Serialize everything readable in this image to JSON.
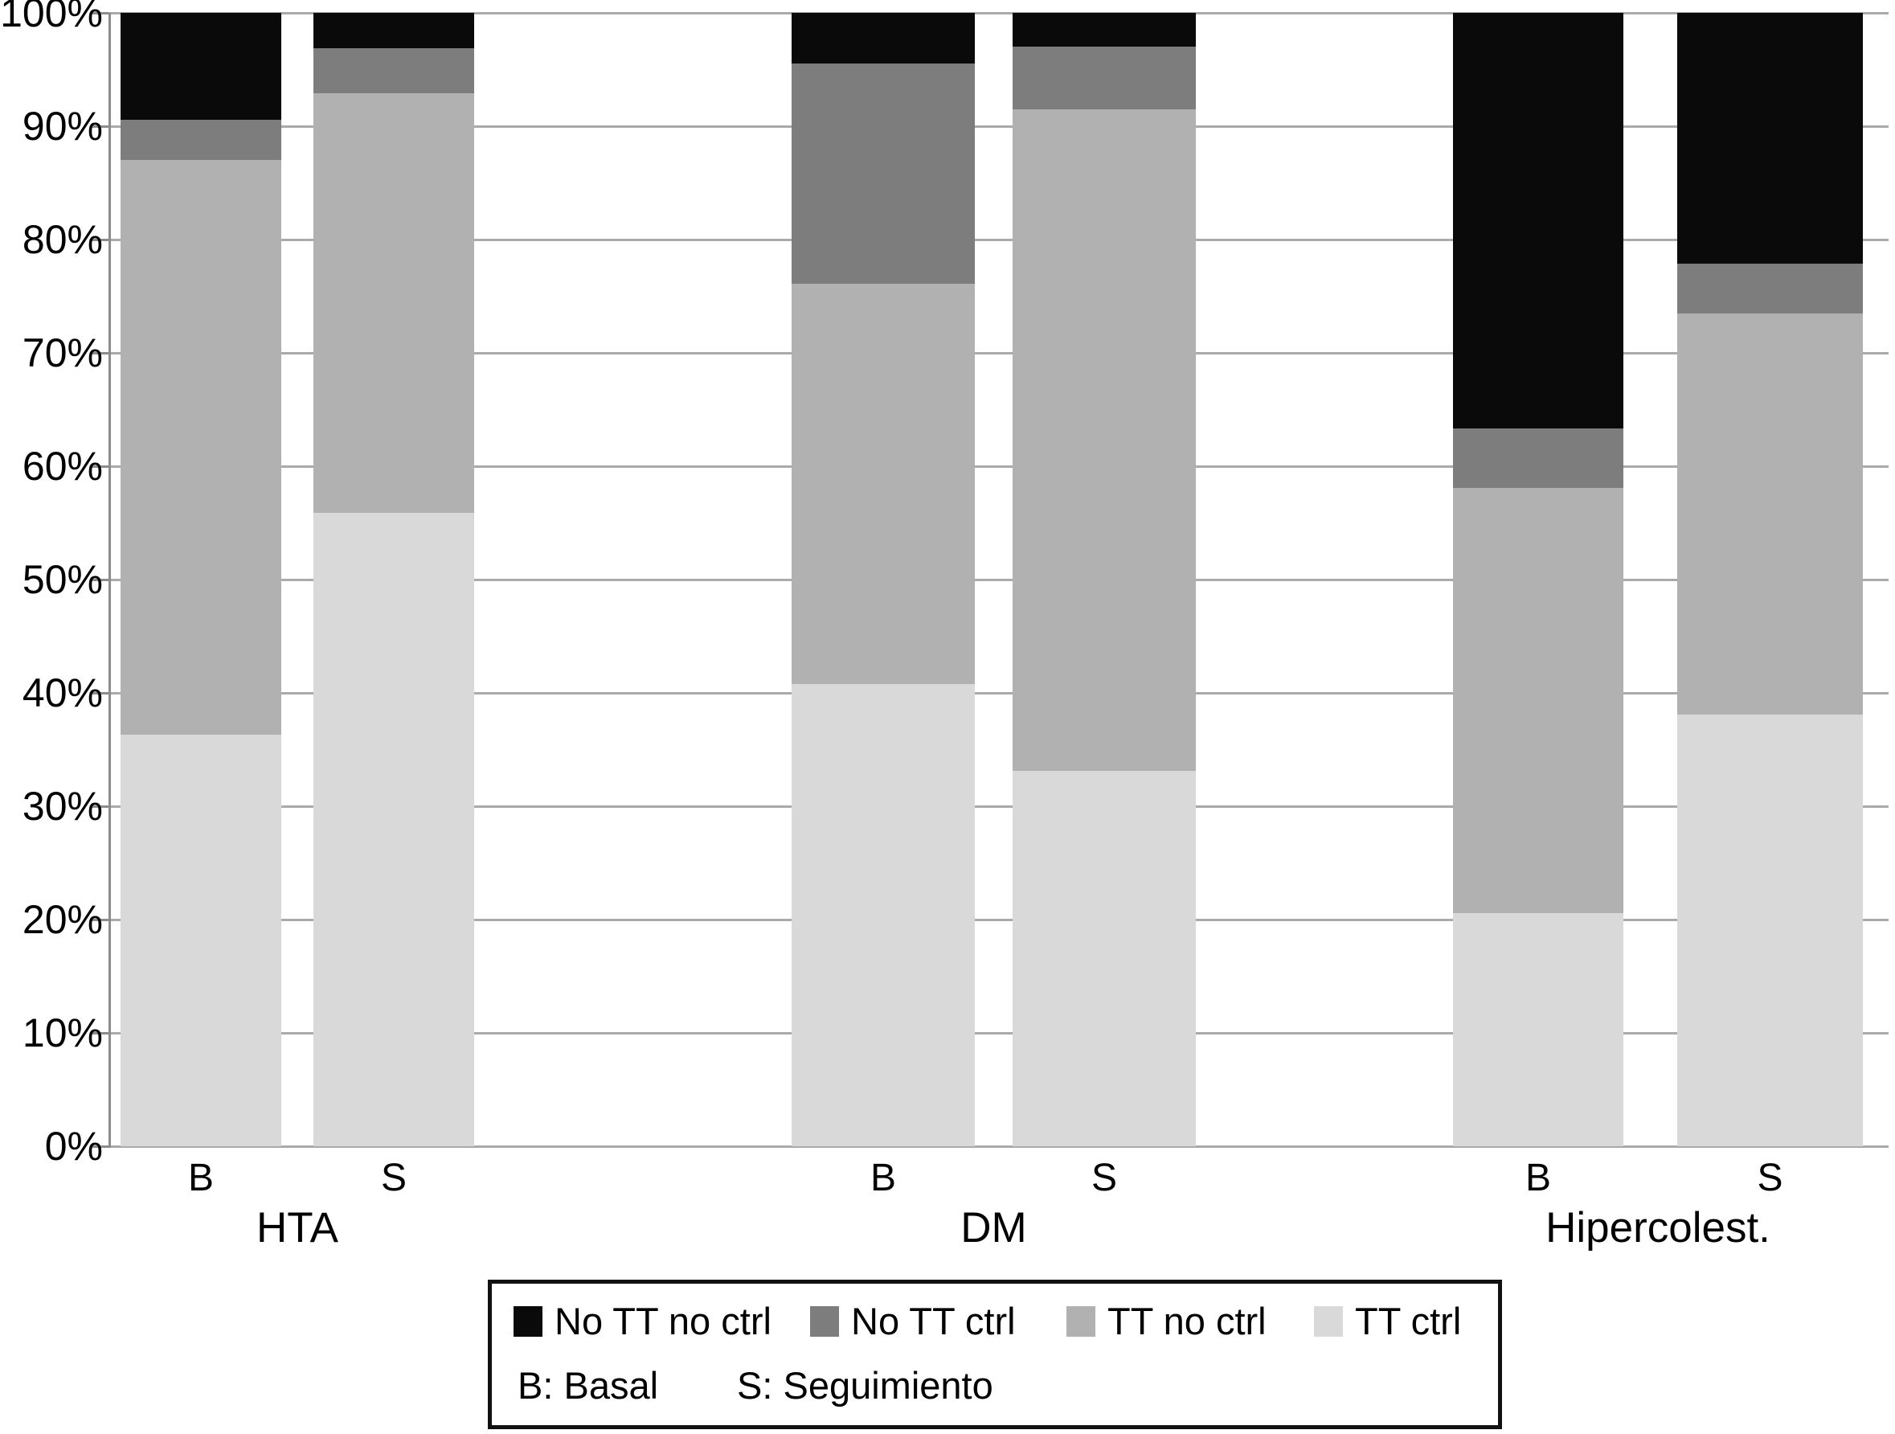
{
  "chart_data": {
    "type": "bar",
    "subtype": "percent-stacked",
    "title": "",
    "xlabel": "",
    "ylabel": "",
    "ylim": [
      0,
      100
    ],
    "grid": true,
    "y_ticks": [
      "0%",
      "10%",
      "20%",
      "30%",
      "40%",
      "50%",
      "60%",
      "70%",
      "80%",
      "90%",
      "100%"
    ],
    "bar_labels": [
      "B",
      "S",
      "B",
      "S",
      "B",
      "S"
    ],
    "group_labels": [
      "HTA",
      "DM",
      "Hipercolest."
    ],
    "categories": [
      "HTA B",
      "HTA S",
      "DM B",
      "DM S",
      "Hipercolest. B",
      "Hipercolest. S"
    ],
    "series": [
      {
        "name": "TT ctrl",
        "color": "#d9d9d9",
        "values": [
          36.3,
          55.9,
          40.8,
          33.1,
          20.6,
          38.1
        ]
      },
      {
        "name": "TT no ctrl",
        "color": "#b1b1b1",
        "values": [
          50.7,
          37.0,
          35.3,
          58.4,
          37.5,
          35.4
        ]
      },
      {
        "name": "No TT ctrl",
        "color": "#7d7d7d",
        "values": [
          3.6,
          4.0,
          19.4,
          5.5,
          5.2,
          4.4
        ]
      },
      {
        "name": "No TT no ctrl",
        "color": "#0a0a0a",
        "values": [
          9.4,
          3.1,
          4.5,
          3.0,
          36.7,
          22.1
        ]
      }
    ],
    "legend": {
      "position": "bottom",
      "items": [
        {
          "label": "No TT no ctrl",
          "color": "#0a0a0a"
        },
        {
          "label": "No TT ctrl",
          "color": "#7d7d7d"
        },
        {
          "label": "TT no ctrl",
          "color": "#b1b1b1"
        },
        {
          "label": "TT ctrl",
          "color": "#d9d9d9"
        }
      ],
      "note": [
        "B: Basal",
        "S: Seguimiento"
      ]
    }
  }
}
